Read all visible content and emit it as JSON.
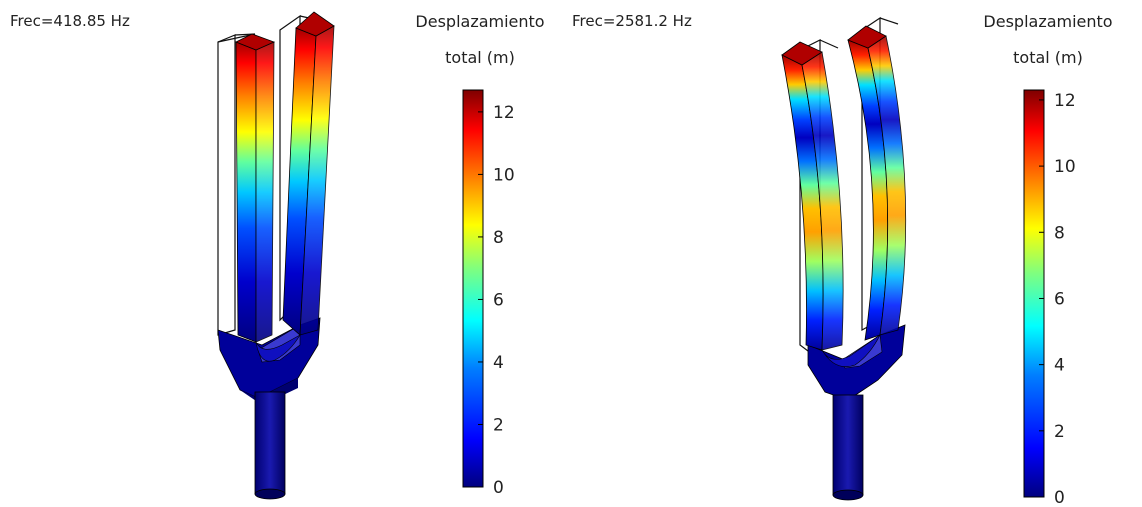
{
  "panels": [
    {
      "frequency_label": "Frec=418.85 Hz",
      "colorbar": {
        "title_line1": "Desplazamiento",
        "title_line2": "total (m)",
        "ticks": [
          "12",
          "10",
          "8",
          "6",
          "4",
          "2",
          "0"
        ],
        "max": 12.7
      }
    },
    {
      "frequency_label": "Frec=2581.2 Hz",
      "colorbar": {
        "title_line1": "Desplazamiento",
        "title_line2": "total (m)",
        "ticks": [
          "12",
          "10",
          "8",
          "6",
          "4",
          "2",
          "0"
        ],
        "max": 12.3
      }
    }
  ],
  "colormap": [
    "#00007f",
    "#0000ff",
    "#007fff",
    "#00ffff",
    "#7fff7f",
    "#ffff00",
    "#ff7f00",
    "#ff0000",
    "#7f0000"
  ]
}
